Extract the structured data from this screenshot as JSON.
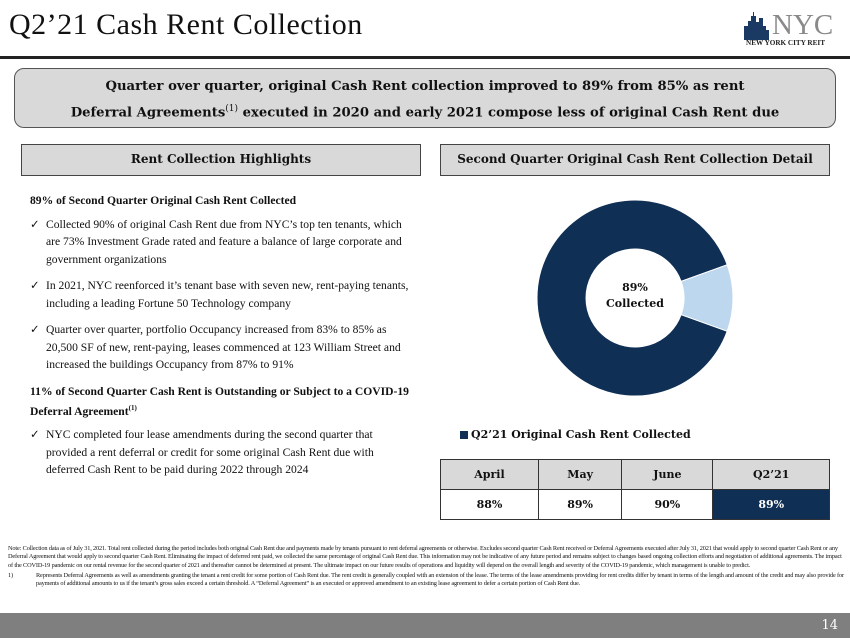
{
  "header": {
    "title": "Q2’21 Cash Rent Collection",
    "logo_text": "NYC",
    "logo_subtext": "NEW YORK CITY REIT"
  },
  "banner": {
    "line1": "Quarter over quarter, original Cash Rent collection improved to 89% from 85% as rent",
    "line2_a": "Deferral Agreements",
    "line2_sup": "(1)",
    "line2_b": " executed in 2020 and early 2021 compose less of original Cash Rent due"
  },
  "left": {
    "header": "Rent Collection Highlights",
    "heading1": "89% of Second Quarter Original Cash Rent Collected",
    "bullets1": [
      "Collected 90% of original Cash Rent due from NYC’s top ten tenants, which are 73% Investment Grade rated and feature a balance of large corporate and government organizations",
      "In 2021, NYC reenforced it’s tenant base with seven new, rent-paying tenants, including a leading Fortune 50 Technology company",
      "Quarter over quarter, portfolio Occupancy increased from 83% to 85% as 20,500 SF of new, rent-paying, leases commenced at 123 William Street and increased the buildings Occupancy from 87% to 91%"
    ],
    "heading2": "11% of Second Quarter Cash Rent is Outstanding or Subject to a COVID-19 Deferral Agreement",
    "heading2_sup": "(1)",
    "bullets2": [
      "NYC completed four lease amendments during the second quarter that provided a rent deferral or credit for some original Cash Rent due with deferred Cash Rent to be paid during 2022 through 2024"
    ],
    "check": "✓"
  },
  "right": {
    "header": "Second Quarter Original Cash Rent Collection Detail"
  },
  "chart_data": {
    "type": "pie",
    "variant": "donut",
    "slices": [
      {
        "label": "Collected",
        "value": 89,
        "color": "#0f2f55"
      },
      {
        "label": "Outstanding",
        "value": 11,
        "color": "#bdd7ee"
      }
    ],
    "center_value": "89%",
    "center_label": "Collected",
    "legend": [
      "Q2’21 Original Cash Rent Collected"
    ],
    "legend_placement": "bottom-left"
  },
  "table": {
    "headers": [
      "April",
      "May",
      "June",
      "Q2’21"
    ],
    "values": [
      "88%",
      "89%",
      "90%",
      "89%"
    ]
  },
  "notes": {
    "note": "Note: Collection data as of July 31, 2021. Total rent collected during the period includes both original Cash Rent due and payments made by tenants pursuant to rent deferral agreements or otherwise. Excludes second quarter Cash Rent received or Deferral Agreements executed after July 31, 2021 that would apply to second quarter Cash Rent or any Deferral Agreement that would apply to second quarter Cash Rent. Eliminating the impact of deferred rent paid, we collected the same percentage of original Cash Rent due. This information may not be indicative of any future period and remains subject to changes based ongoing collection efforts and negotiation of additional agreements. The impact of the COVID-19 pandemic on our rental revenue for the second quarter of 2021 and thereafter cannot be determined at present. The ultimate impact on our future results of operations and liquidity will depend on the overall length and severity of the COVID-19 pandemic, which management is unable to predict.",
    "fn_num": "1)",
    "fn1": "Represents Deferral Agreements as well as amendments granting the tenant a rent credit for some portion of Cash Rent due. The rent credit is generally coupled with an extension of the lease. The terms of the lease amendments providing for rent credits differ by tenant in terms of the length and amount of the credit and may also provide for payments of additional amounts to us if the tenant’s gross sales exceed a certain threshold. A “Deferral Agreement” is an executed or approved amendment to an existing lease agreement to defer a certain portion of Cash Rent due."
  },
  "footer": {
    "page": "14"
  }
}
